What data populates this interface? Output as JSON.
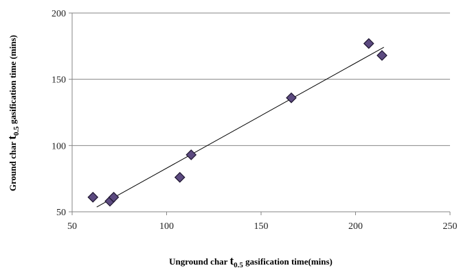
{
  "chart_data": {
    "type": "scatter",
    "xlabel": {
      "pre": "Unground char ",
      "t": "t",
      "sub": "0.5",
      "post": " gasification time(mins)"
    },
    "ylabel": {
      "pre": "Ground char ",
      "t": "t",
      "sub": "0.5",
      "post": " gasification time (mins)"
    },
    "xlim": [
      50,
      250
    ],
    "ylim": [
      50,
      200
    ],
    "xticks": [
      50,
      100,
      150,
      200,
      250
    ],
    "yticks": [
      50,
      100,
      150,
      200
    ],
    "grid": {
      "horizontal": true,
      "vertical": false
    },
    "series": [
      {
        "marker": "diamond",
        "color": "#5c4a80",
        "points": [
          {
            "x": 61,
            "y": 61
          },
          {
            "x": 70,
            "y": 58
          },
          {
            "x": 72,
            "y": 61
          },
          {
            "x": 107,
            "y": 76
          },
          {
            "x": 113,
            "y": 93
          },
          {
            "x": 166,
            "y": 136
          },
          {
            "x": 207,
            "y": 177
          },
          {
            "x": 214,
            "y": 168
          }
        ]
      }
    ],
    "trendline": {
      "type": "linear",
      "x_range": [
        63,
        215
      ]
    }
  }
}
